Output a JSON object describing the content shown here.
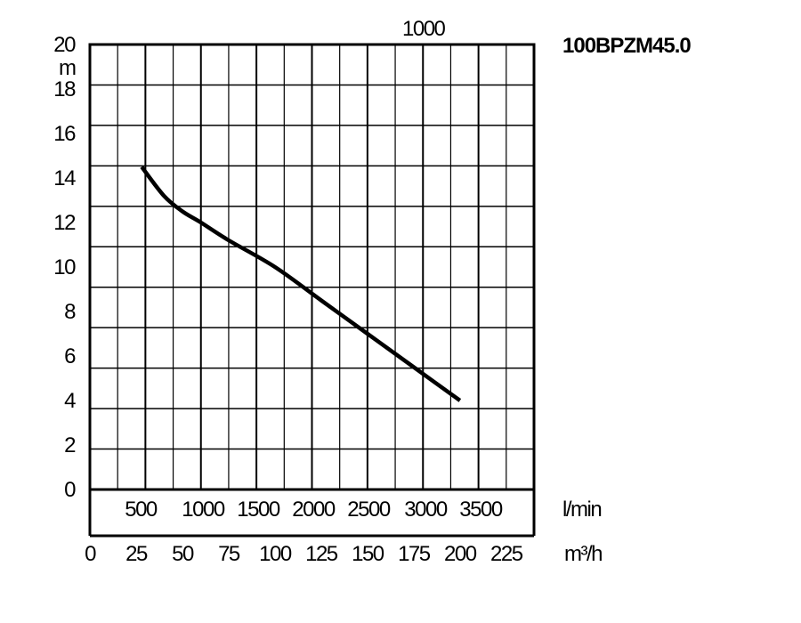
{
  "chart_data": {
    "type": "line",
    "title": "100BPZM45.0",
    "top_axis_label": "1000",
    "ylabel": "m",
    "ylim": [
      0,
      20
    ],
    "y_ticks": [
      "0",
      "2",
      "4",
      "6",
      "8",
      "10",
      "12",
      "14",
      "16",
      "18",
      "20"
    ],
    "xlim_m3h": [
      0,
      240
    ],
    "x_ticks_lmin": [
      "500",
      "1000",
      "1500",
      "2000",
      "2500",
      "3000",
      "3500"
    ],
    "x_label_lmin": "l/min",
    "x_ticks_m3h": [
      "0",
      "25",
      "50",
      "75",
      "100",
      "125",
      "150",
      "175",
      "200",
      "225"
    ],
    "x_label_m3h": "m³/h",
    "grid": true,
    "series": [
      {
        "x_m3h": [
          28,
          40,
          50,
          60,
          75,
          100,
          125,
          150,
          175,
          200
        ],
        "y": [
          14.5,
          13.2,
          12.5,
          12,
          11.2,
          10,
          8.5,
          7,
          5.5,
          4
        ]
      }
    ]
  }
}
